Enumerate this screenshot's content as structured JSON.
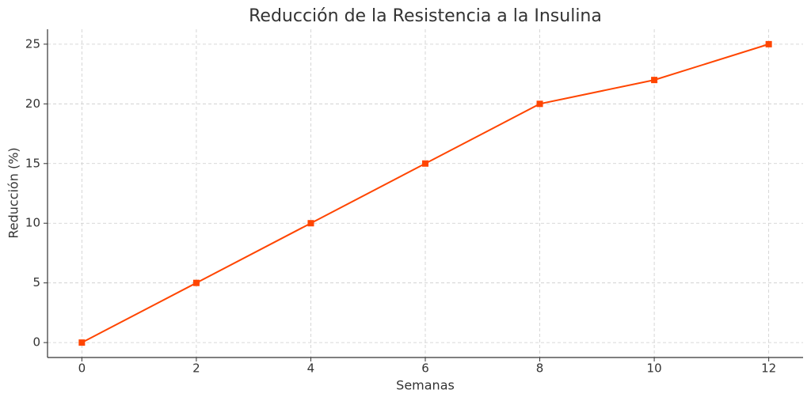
{
  "chart_data": {
    "type": "line",
    "title": "Reducción de la Resistencia a la Insulina",
    "x_label": "Semanas",
    "y_label": "Reducción (%)",
    "x": [
      0,
      2,
      4,
      6,
      8,
      10,
      12
    ],
    "series": [
      {
        "name": "Reducción",
        "color": "#ff4500",
        "values": [
          0,
          5,
          10,
          15,
          20,
          22,
          25
        ]
      }
    ],
    "xlim": [
      -0.6,
      12.6
    ],
    "ylim": [
      -1.25,
      26.25
    ],
    "xticks": [
      0,
      2,
      4,
      6,
      8,
      10,
      12
    ],
    "yticks": [
      0,
      5,
      10,
      15,
      20,
      25
    ],
    "grid": true,
    "marker": "square"
  }
}
